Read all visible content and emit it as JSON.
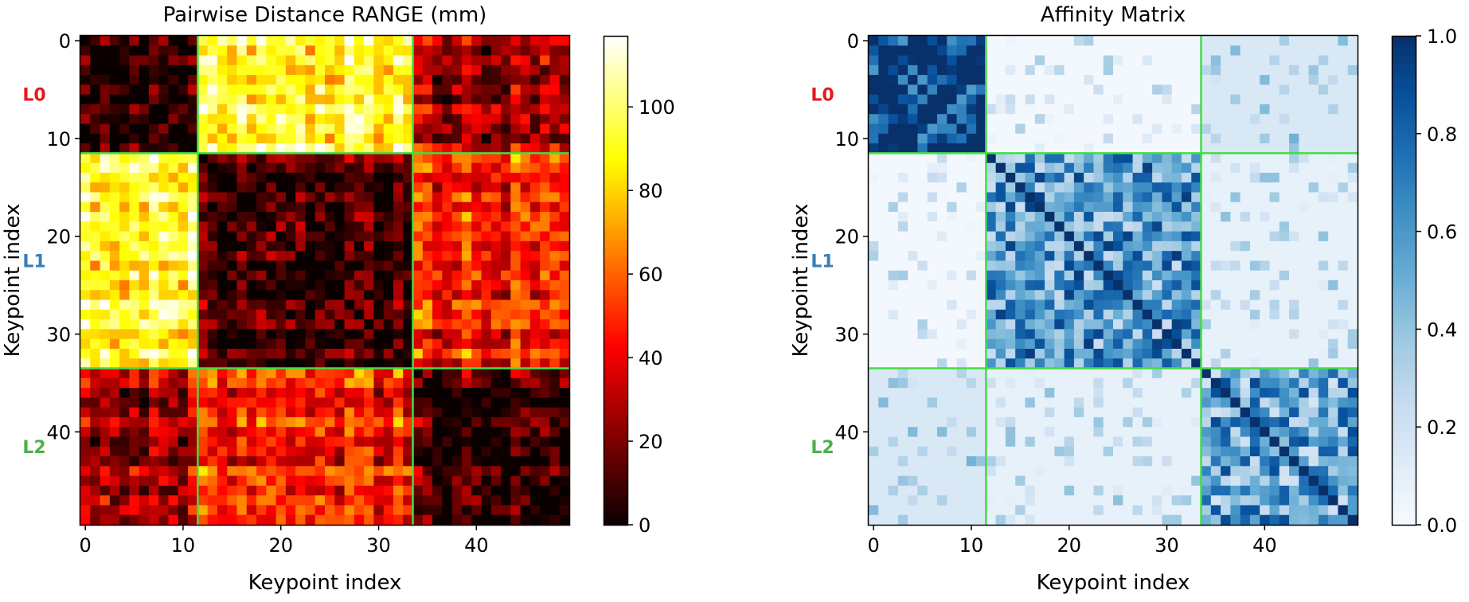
{
  "chart_data": [
    {
      "type": "heatmap",
      "title": "Pairwise Distance RANGE (mm)",
      "xlabel": "Keypoint index",
      "ylabel": "Keypoint index",
      "n": 50,
      "x_ticks": [
        0,
        10,
        20,
        30,
        40
      ],
      "y_ticks": [
        0,
        10,
        20,
        30,
        40
      ],
      "colormap": "hot",
      "vmin": 0,
      "vmax": 117,
      "colorbar_ticks": [
        0,
        20,
        40,
        60,
        80,
        100
      ],
      "groups": [
        {
          "label": "L0",
          "start": 0,
          "end": 11,
          "color": "#e41a1c"
        },
        {
          "label": "L1",
          "start": 12,
          "end": 33,
          "color": "#377eb8"
        },
        {
          "label": "L2",
          "start": 34,
          "end": 49,
          "color": "#4daf4a"
        }
      ],
      "boundary_color": "#44dd44",
      "block_levels": [
        [
          6,
          90,
          30
        ],
        [
          90,
          8,
          48
        ],
        [
          30,
          48,
          10
        ]
      ],
      "diagonal_value": 0
    },
    {
      "type": "heatmap",
      "title": "Affinity Matrix",
      "xlabel": "Keypoint index",
      "ylabel": "Keypoint index",
      "n": 50,
      "x_ticks": [
        0,
        10,
        20,
        30,
        40
      ],
      "y_ticks": [
        0,
        10,
        20,
        30,
        40
      ],
      "colormap": "Blues",
      "vmin": 0.0,
      "vmax": 1.0,
      "colorbar_ticks": [
        0.0,
        0.2,
        0.4,
        0.6,
        0.8,
        1.0
      ],
      "colorbar_tick_labels": [
        "0.0",
        "0.2",
        "0.4",
        "0.6",
        "0.8",
        "1.0"
      ],
      "groups": [
        {
          "label": "L0",
          "start": 0,
          "end": 11,
          "color": "#e41a1c"
        },
        {
          "label": "L1",
          "start": 12,
          "end": 33,
          "color": "#377eb8"
        },
        {
          "label": "L2",
          "start": 34,
          "end": 49,
          "color": "#4daf4a"
        }
      ],
      "boundary_color": "#44dd44",
      "block_levels": [
        [
          0.92,
          0.02,
          0.15
        ],
        [
          0.02,
          0.55,
          0.08
        ],
        [
          0.15,
          0.08,
          0.5
        ]
      ],
      "diagonal_value": 1.0
    }
  ]
}
